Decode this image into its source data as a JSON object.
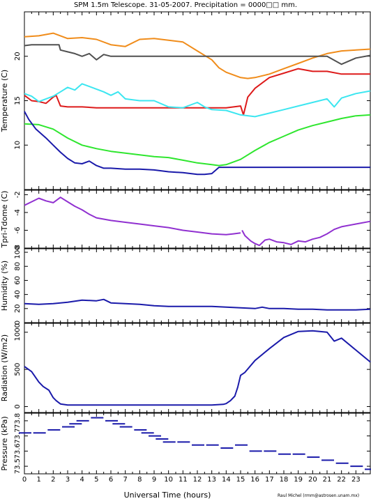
{
  "title": "SPM 1.5m Telescope. 31-05-2007. Precipitation = 0000□□ mm.",
  "credit": "Raul Michel (rmm@astrosen.unam.mx)",
  "xlabel": "Universal Time (hours)",
  "colors": {
    "orange": "#f08c1a",
    "gray": "#505050",
    "red": "#dd1a1a",
    "cyan": "#3ce6f0",
    "green": "#2ee62e",
    "blue": "#1a1aaa",
    "purple": "#9030d0"
  },
  "chart_data": [
    {
      "type": "line",
      "name": "temperature",
      "ylabel": "Temperature (C)",
      "xlim": [
        0,
        24
      ],
      "ylim": [
        5,
        25
      ],
      "x_ticks": [
        "0",
        "1",
        "2",
        "3",
        "4",
        "5",
        "6",
        "7",
        "8",
        "9",
        "10",
        "11",
        "12",
        "13",
        "14",
        "15",
        "16",
        "17",
        "18",
        "19",
        "20",
        "21",
        "22",
        "23"
      ],
      "y_ticks": [
        10,
        15,
        20
      ],
      "grid": false,
      "series": [
        {
          "color": "orange",
          "x": [
            0,
            1,
            2,
            3,
            4,
            5,
            6,
            7,
            8,
            9,
            10,
            11,
            12,
            13,
            13.5,
            14,
            15,
            15.5,
            16,
            17,
            18,
            19,
            20,
            21,
            22,
            23,
            24
          ],
          "y": [
            22.2,
            22.3,
            22.6,
            22.0,
            22.1,
            21.9,
            21.3,
            21.1,
            21.9,
            22.0,
            21.8,
            21.6,
            20.6,
            19.6,
            18.7,
            18.2,
            17.6,
            17.5,
            17.6,
            18.0,
            18.6,
            19.2,
            19.8,
            20.3,
            20.6,
            20.7,
            20.8
          ]
        },
        {
          "color": "gray",
          "x": [
            0,
            0.5,
            1,
            1.5,
            2,
            2.4,
            2.5,
            3,
            3.5,
            4,
            4.5,
            5,
            5.5,
            6,
            7,
            8,
            9,
            10,
            11,
            12,
            13,
            14,
            15,
            16,
            17,
            18,
            19,
            20,
            21,
            22,
            23,
            24
          ],
          "y": [
            21.2,
            21.3,
            21.3,
            21.3,
            21.3,
            21.3,
            20.7,
            20.5,
            20.3,
            20.0,
            20.3,
            19.6,
            20.2,
            20.0,
            20.0,
            20.0,
            20.0,
            20.0,
            20.0,
            20.0,
            20.0,
            20.0,
            20.0,
            20.0,
            20.0,
            20.0,
            20.0,
            20.0,
            20.0,
            19.1,
            19.8,
            20.1
          ]
        },
        {
          "color": "red",
          "x": [
            0,
            0.5,
            1,
            1.5,
            2,
            2.2,
            2.5,
            3,
            4,
            5,
            6,
            7,
            8,
            9,
            10,
            11,
            12,
            13,
            14,
            15,
            15.2,
            15.5,
            16,
            17,
            18,
            19,
            20,
            21,
            22,
            23,
            24
          ],
          "y": [
            15.6,
            15.0,
            14.9,
            14.7,
            15.4,
            15.6,
            14.4,
            14.3,
            14.3,
            14.2,
            14.2,
            14.2,
            14.2,
            14.2,
            14.2,
            14.2,
            14.2,
            14.2,
            14.2,
            14.4,
            13.4,
            15.4,
            16.4,
            17.6,
            18.1,
            18.6,
            18.3,
            18.3,
            18.0,
            18.0,
            18.0
          ]
        },
        {
          "color": "cyan",
          "x": [
            0,
            0.5,
            1,
            1.5,
            2,
            2.5,
            3,
            3.5,
            4,
            4.5,
            5,
            5.5,
            6,
            6.5,
            7,
            8,
            9,
            10,
            11,
            12,
            12.5,
            13,
            14,
            15,
            16,
            17,
            18,
            19,
            20,
            21,
            21.5,
            22,
            23,
            24
          ],
          "y": [
            15.8,
            15.5,
            14.9,
            15.2,
            15.5,
            16.0,
            16.5,
            16.2,
            16.9,
            16.6,
            16.3,
            16.0,
            15.6,
            16.0,
            15.2,
            15.0,
            15.0,
            14.3,
            14.2,
            14.8,
            14.3,
            14.0,
            13.9,
            13.4,
            13.2,
            13.6,
            14.0,
            14.4,
            14.8,
            15.2,
            14.3,
            15.3,
            15.8,
            16.1
          ]
        },
        {
          "color": "green",
          "x": [
            0,
            1,
            2,
            3,
            4,
            5,
            6,
            7,
            8,
            9,
            10,
            11,
            12,
            13,
            13.5,
            14,
            15,
            16,
            17,
            18,
            19,
            20,
            21,
            22,
            23,
            24
          ],
          "y": [
            12.4,
            12.3,
            11.8,
            10.8,
            10.0,
            9.6,
            9.3,
            9.1,
            8.9,
            8.7,
            8.6,
            8.3,
            8.0,
            7.8,
            7.7,
            7.8,
            8.4,
            9.4,
            10.3,
            11.0,
            11.7,
            12.2,
            12.6,
            13.0,
            13.3,
            13.4
          ]
        },
        {
          "color": "blue",
          "x": [
            0,
            0.3,
            0.8,
            1.5,
            2,
            2.5,
            3,
            3.5,
            4,
            4.5,
            5,
            5.5,
            6,
            7,
            8,
            9,
            10,
            11,
            12,
            12.5,
            13,
            13.5,
            14,
            15,
            16,
            17,
            18,
            19,
            20,
            21,
            22,
            23,
            24
          ],
          "y": [
            13.8,
            12.9,
            11.8,
            10.8,
            10.0,
            9.2,
            8.5,
            8.0,
            7.9,
            8.2,
            7.7,
            7.4,
            7.4,
            7.3,
            7.3,
            7.2,
            7.0,
            6.9,
            6.7,
            6.7,
            6.8,
            7.5,
            7.5,
            7.5,
            7.5,
            7.5,
            7.5,
            7.5,
            7.5,
            7.5,
            7.5,
            7.5,
            7.5
          ]
        }
      ]
    },
    {
      "type": "line",
      "name": "tpri-tdome",
      "ylabel": "Tpri-Tdome (C)",
      "xlim": [
        0,
        24
      ],
      "ylim": [
        -8,
        -1.5
      ],
      "y_ticks": [
        -8,
        -6,
        -4,
        -2
      ],
      "grid": false,
      "series": [
        {
          "color": "purple",
          "x": [
            0,
            0.5,
            1,
            1.5,
            2,
            2.5,
            3,
            3.5,
            4,
            4.5,
            5,
            6,
            7,
            8,
            9,
            10,
            11,
            12,
            13,
            14,
            14.5,
            15
          ],
          "y": [
            -3.2,
            -2.8,
            -2.4,
            -2.7,
            -2.9,
            -2.3,
            -2.8,
            -3.3,
            -3.7,
            -4.2,
            -4.6,
            -4.9,
            -5.1,
            -5.3,
            -5.5,
            -5.7,
            -6.0,
            -6.2,
            -6.4,
            -6.5,
            -6.4,
            -6.3
          ]
        },
        {
          "color": "purple",
          "x": [
            15.1,
            15.3,
            15.7,
            16,
            16.3,
            16.7,
            17,
            17.5,
            18,
            18.5,
            19,
            19.5,
            20,
            20.5,
            21,
            21.5,
            22,
            23,
            24
          ],
          "y": [
            -6.0,
            -6.6,
            -7.2,
            -7.5,
            -7.7,
            -7.1,
            -7.0,
            -7.3,
            -7.4,
            -7.6,
            -7.2,
            -7.3,
            -7.0,
            -6.8,
            -6.4,
            -5.9,
            -5.6,
            -5.3,
            -5.0
          ]
        }
      ]
    },
    {
      "type": "line",
      "name": "humidity",
      "ylabel": "Humidity (%)",
      "xlim": [
        0,
        24
      ],
      "ylim": [
        0,
        105
      ],
      "y_ticks": [
        0,
        20,
        40,
        60,
        80,
        100
      ],
      "grid": false,
      "series": [
        {
          "color": "blue",
          "x": [
            0,
            1,
            2,
            3,
            4,
            5,
            5.5,
            6,
            7,
            8,
            9,
            10,
            11,
            12,
            13,
            14,
            15,
            16,
            16.5,
            17,
            18,
            19,
            20,
            21,
            22,
            23,
            24
          ],
          "y": [
            27,
            26,
            27,
            29,
            32,
            31,
            33,
            28,
            27,
            26,
            24,
            23,
            23,
            23,
            23,
            22,
            21,
            20,
            22,
            20,
            20,
            19,
            19,
            18,
            18,
            18,
            19
          ]
        }
      ]
    },
    {
      "type": "line",
      "name": "radiation",
      "ylabel": "Radiation (W/m2)",
      "xlim": [
        0,
        24
      ],
      "ylim": [
        -80,
        1120
      ],
      "y_ticks": [
        0,
        500,
        1000
      ],
      "grid": false,
      "series": [
        {
          "color": "blue",
          "x": [
            0,
            0.5,
            1,
            1.3,
            1.7,
            2,
            2.2,
            2.5,
            3,
            4,
            5,
            6,
            7,
            8,
            9,
            10,
            11,
            12,
            13,
            13.8,
            14,
            14.3,
            14.6,
            14.8,
            15,
            15.3,
            16,
            17,
            18,
            19,
            20,
            21,
            21.5,
            22,
            23,
            24
          ],
          "y": [
            540,
            470,
            330,
            270,
            220,
            120,
            80,
            35,
            20,
            20,
            20,
            20,
            20,
            20,
            20,
            20,
            20,
            20,
            20,
            30,
            40,
            80,
            140,
            260,
            420,
            460,
            620,
            780,
            930,
            1010,
            1020,
            1000,
            880,
            920,
            760,
            600
          ]
        }
      ]
    },
    {
      "type": "scatter",
      "name": "pressure",
      "ylabel": "Pressure (kPa)",
      "xlim": [
        0,
        24
      ],
      "ylim": [
        73.45,
        73.85
      ],
      "y_ticks": [
        "73.5",
        "73.6",
        "73.7",
        "73.8"
      ],
      "grid": false,
      "series": [
        {
          "color": "blue",
          "x": [
            0,
            1,
            2,
            3,
            3.5,
            4,
            5,
            6,
            6.5,
            7,
            8,
            8.5,
            9,
            9.5,
            10,
            11,
            12,
            13,
            14,
            15,
            16,
            17,
            18,
            19,
            20,
            21,
            22,
            23,
            24
          ],
          "y": [
            73.72,
            73.72,
            73.74,
            73.76,
            73.78,
            73.8,
            73.82,
            73.8,
            73.78,
            73.76,
            73.74,
            73.72,
            73.7,
            73.68,
            73.66,
            73.66,
            73.64,
            73.64,
            73.62,
            73.64,
            73.6,
            73.6,
            73.58,
            73.58,
            73.56,
            73.54,
            73.52,
            73.5,
            73.48
          ]
        }
      ]
    }
  ]
}
